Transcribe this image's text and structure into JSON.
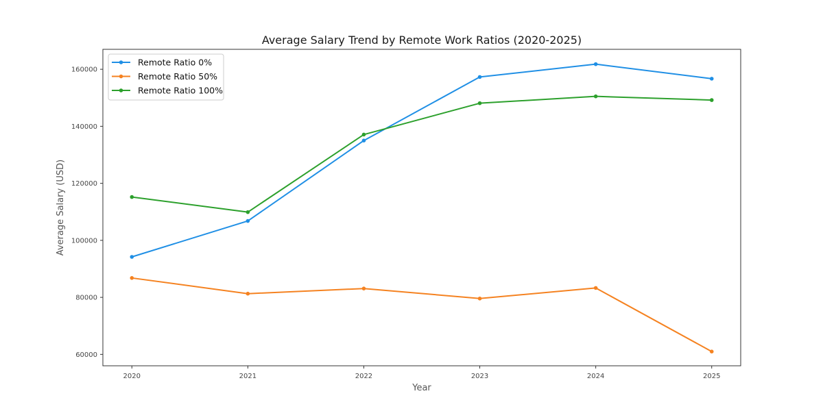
{
  "chart_data": {
    "type": "line",
    "title": "Average Salary Trend by Remote Work Ratios (2020-2025)",
    "xlabel": "Year",
    "ylabel": "Average Salary (USD)",
    "x": [
      2020,
      2021,
      2022,
      2023,
      2024,
      2025
    ],
    "x_tick_labels": [
      "2020",
      "2021",
      "2022",
      "2023",
      "2024",
      "2025"
    ],
    "y_ticks": [
      60000,
      80000,
      100000,
      120000,
      140000,
      160000
    ],
    "y_tick_labels": [
      "60000",
      "80000",
      "100000",
      "120000",
      "140000",
      "160000"
    ],
    "xlim": [
      2019.75,
      2025.25
    ],
    "ylim": [
      56000,
      167000
    ],
    "grid": false,
    "legend_position": "top-left",
    "series": [
      {
        "name": "Remote Ratio 0%",
        "color": "#1f8fe5",
        "values": [
          94200,
          106800,
          135000,
          157300,
          161800,
          156700
        ]
      },
      {
        "name": "Remote Ratio 50%",
        "color": "#f58220",
        "values": [
          86800,
          81300,
          83100,
          79600,
          83300,
          61000
        ]
      },
      {
        "name": "Remote Ratio 100%",
        "color": "#2ca02c",
        "values": [
          115200,
          109900,
          137100,
          148100,
          150500,
          149200
        ]
      }
    ]
  }
}
